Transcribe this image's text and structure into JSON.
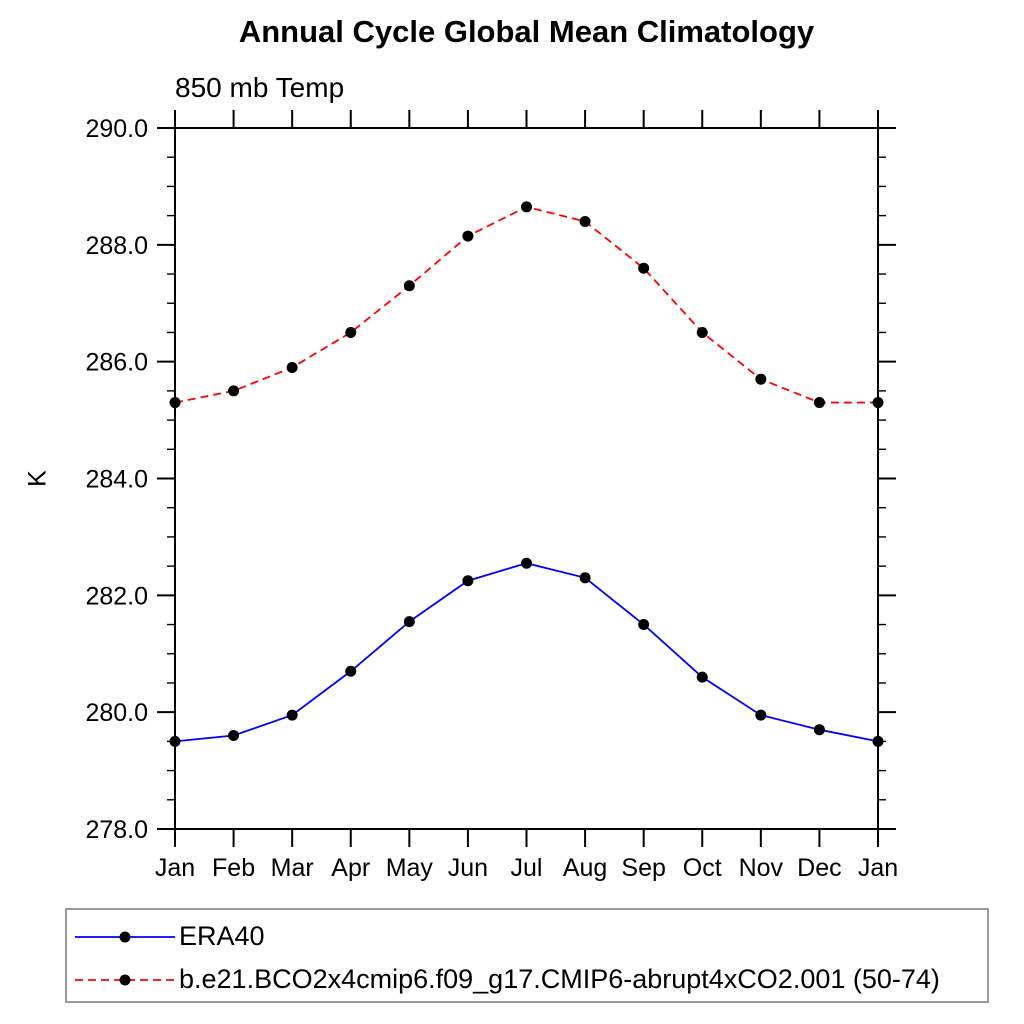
{
  "chart_data": {
    "type": "line",
    "title": "Annual Cycle Global Mean Climatology",
    "subtitle": "850 mb Temp",
    "ylabel": "K",
    "xlabel": "",
    "categories": [
      "Jan",
      "Feb",
      "Mar",
      "Apr",
      "May",
      "Jun",
      "Jul",
      "Aug",
      "Sep",
      "Oct",
      "Nov",
      "Dec",
      "Jan"
    ],
    "ylim": [
      278.0,
      290.0
    ],
    "ytick_major_step": 2.0,
    "ytick_minor_step": 0.5,
    "ytick_labels": [
      "278.0",
      "280.0",
      "282.0",
      "284.0",
      "286.0",
      "288.0",
      "290.0"
    ],
    "grid": false,
    "legend_position": "bottom",
    "axis_color": "#000000",
    "marker": "filled-circle",
    "marker_color": "#000000",
    "series": [
      {
        "name": "ERA40",
        "color": "#0000ff",
        "line_style": "solid",
        "values": [
          279.5,
          279.6,
          279.95,
          280.7,
          281.55,
          282.25,
          282.55,
          282.3,
          281.5,
          280.6,
          279.95,
          279.7,
          279.5
        ]
      },
      {
        "name": "b.e21.BCO2x4cmip6.f09_g17.CMIP6-abrupt4xCO2.001 (50-74)",
        "color": "#ff0000",
        "line_style": "dashed",
        "values": [
          285.3,
          285.5,
          285.9,
          286.5,
          287.3,
          288.15,
          288.65,
          288.4,
          287.6,
          286.5,
          285.7,
          285.3,
          285.3
        ]
      }
    ]
  }
}
